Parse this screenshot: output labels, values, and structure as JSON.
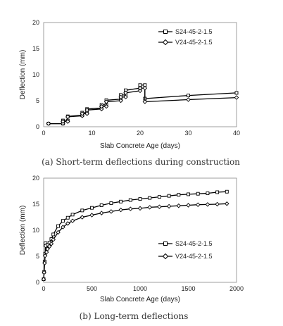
{
  "chart_data": [
    {
      "type": "line",
      "caption": "(a) Short-term deflections during construction",
      "xlabel": "Slab Concrete Age (days)",
      "ylabel": "Deflection (mm)",
      "xlim": [
        0,
        40
      ],
      "ylim": [
        0,
        20
      ],
      "xticks": [
        0,
        10,
        20,
        30,
        40
      ],
      "yticks": [
        0,
        5,
        10,
        15,
        20
      ],
      "grid": false,
      "legend_position": "top-right",
      "series": [
        {
          "name": "S24-45-2-1.5",
          "marker": "square",
          "points": [
            [
              1,
              0.6
            ],
            [
              4,
              0.6
            ],
            [
              4,
              1.2
            ],
            [
              5,
              1.2
            ],
            [
              5,
              2.0
            ],
            [
              8,
              2.2
            ],
            [
              8,
              2.7
            ],
            [
              9,
              2.7
            ],
            [
              9,
              3.4
            ],
            [
              12,
              3.6
            ],
            [
              12,
              4.2
            ],
            [
              13,
              4.2
            ],
            [
              13,
              5.1
            ],
            [
              16,
              5.3
            ],
            [
              16,
              6.1
            ],
            [
              17,
              6.1
            ],
            [
              17,
              7.0
            ],
            [
              20,
              7.4
            ],
            [
              20,
              8.0
            ],
            [
              21,
              8.0
            ],
            [
              21,
              5.4
            ],
            [
              30,
              6.0
            ],
            [
              40,
              6.5
            ]
          ]
        },
        {
          "name": "V24-45-2-1.5",
          "marker": "diamond",
          "points": [
            [
              1,
              0.6
            ],
            [
              4,
              0.6
            ],
            [
              4,
              1.0
            ],
            [
              5,
              1.0
            ],
            [
              5,
              1.9
            ],
            [
              8,
              2.1
            ],
            [
              8,
              2.5
            ],
            [
              9,
              2.5
            ],
            [
              9,
              3.2
            ],
            [
              12,
              3.4
            ],
            [
              12,
              3.9
            ],
            [
              13,
              3.9
            ],
            [
              13,
              4.8
            ],
            [
              16,
              5.0
            ],
            [
              16,
              5.7
            ],
            [
              17,
              5.7
            ],
            [
              17,
              6.5
            ],
            [
              20,
              6.9
            ],
            [
              20,
              7.4
            ],
            [
              21,
              7.4
            ],
            [
              21,
              4.8
            ],
            [
              30,
              5.2
            ],
            [
              40,
              5.6
            ]
          ]
        }
      ]
    },
    {
      "type": "line",
      "caption": "(b) Long-term deflections",
      "xlabel": "Slab Concrete Age (days)",
      "ylabel": "Deflection (mm)",
      "xlim": [
        0,
        2000
      ],
      "ylim": [
        0,
        20
      ],
      "xticks": [
        0,
        500,
        1000,
        1500,
        2000
      ],
      "yticks": [
        0,
        5,
        10,
        15,
        20
      ],
      "grid": false,
      "legend_position": "bottom-right",
      "series": [
        {
          "name": "S24-45-2-1.5",
          "marker": "square",
          "points": [
            [
              0,
              0.6
            ],
            [
              5,
              2.0
            ],
            [
              10,
              4.0
            ],
            [
              15,
              5.5
            ],
            [
              20,
              7.5
            ],
            [
              30,
              6.5
            ],
            [
              40,
              7.2
            ],
            [
              60,
              7.6
            ],
            [
              80,
              8.3
            ],
            [
              100,
              9.2
            ],
            [
              150,
              10.8
            ],
            [
              200,
              11.8
            ],
            [
              250,
              12.4
            ],
            [
              300,
              13.0
            ],
            [
              400,
              13.8
            ],
            [
              500,
              14.3
            ],
            [
              600,
              14.8
            ],
            [
              700,
              15.2
            ],
            [
              800,
              15.5
            ],
            [
              900,
              15.8
            ],
            [
              1000,
              16.0
            ],
            [
              1100,
              16.2
            ],
            [
              1200,
              16.4
            ],
            [
              1300,
              16.6
            ],
            [
              1400,
              16.8
            ],
            [
              1500,
              16.9
            ],
            [
              1600,
              17.0
            ],
            [
              1700,
              17.1
            ],
            [
              1800,
              17.3
            ],
            [
              1900,
              17.4
            ]
          ]
        },
        {
          "name": "V24-45-2-1.5",
          "marker": "diamond",
          "points": [
            [
              0,
              0.6
            ],
            [
              5,
              1.9
            ],
            [
              10,
              3.7
            ],
            [
              15,
              5.1
            ],
            [
              20,
              7.0
            ],
            [
              30,
              5.8
            ],
            [
              40,
              6.4
            ],
            [
              60,
              6.9
            ],
            [
              80,
              7.4
            ],
            [
              100,
              8.2
            ],
            [
              150,
              9.6
            ],
            [
              200,
              10.6
            ],
            [
              250,
              11.3
            ],
            [
              300,
              11.8
            ],
            [
              400,
              12.5
            ],
            [
              500,
              12.9
            ],
            [
              600,
              13.3
            ],
            [
              700,
              13.6
            ],
            [
              800,
              13.9
            ],
            [
              900,
              14.1
            ],
            [
              1000,
              14.2
            ],
            [
              1100,
              14.4
            ],
            [
              1200,
              14.5
            ],
            [
              1300,
              14.6
            ],
            [
              1400,
              14.7
            ],
            [
              1500,
              14.8
            ],
            [
              1600,
              14.9
            ],
            [
              1700,
              14.95
            ],
            [
              1800,
              15.0
            ],
            [
              1900,
              15.1
            ]
          ]
        }
      ]
    }
  ]
}
